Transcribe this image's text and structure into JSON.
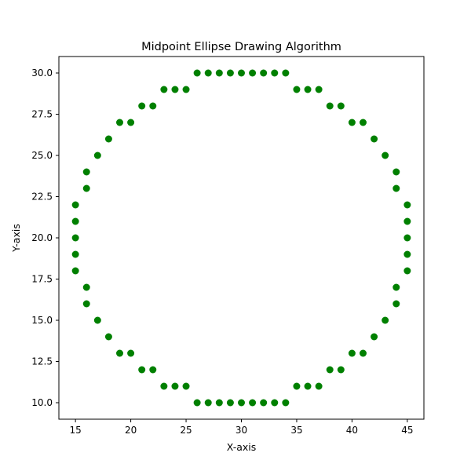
{
  "chart_data": {
    "type": "scatter",
    "title": "Midpoint Ellipse Drawing Algorithm",
    "xlabel": "X-axis",
    "ylabel": "Y-axis",
    "xlim": [
      13.5,
      46.5
    ],
    "ylim": [
      9.0,
      31.0
    ],
    "xticks": [
      15,
      20,
      25,
      30,
      35,
      40,
      45
    ],
    "xtick_labels": [
      "15",
      "20",
      "25",
      "30",
      "35",
      "40",
      "45"
    ],
    "yticks": [
      10.0,
      12.5,
      15.0,
      17.5,
      20.0,
      22.5,
      25.0,
      27.5,
      30.0
    ],
    "ytick_labels": [
      "10.0",
      "12.5",
      "15.0",
      "17.5",
      "20.0",
      "22.5",
      "25.0",
      "27.5",
      "30.0"
    ],
    "grid": false,
    "marker_color": "#008000",
    "points": [
      [
        26,
        30
      ],
      [
        27,
        30
      ],
      [
        28,
        30
      ],
      [
        29,
        30
      ],
      [
        30,
        30
      ],
      [
        31,
        30
      ],
      [
        32,
        30
      ],
      [
        33,
        30
      ],
      [
        34,
        30
      ],
      [
        23,
        29
      ],
      [
        24,
        29
      ],
      [
        25,
        29
      ],
      [
        35,
        29
      ],
      [
        36,
        29
      ],
      [
        37,
        29
      ],
      [
        21,
        28
      ],
      [
        22,
        28
      ],
      [
        38,
        28
      ],
      [
        39,
        28
      ],
      [
        19,
        27
      ],
      [
        20,
        27
      ],
      [
        40,
        27
      ],
      [
        41,
        27
      ],
      [
        18,
        26
      ],
      [
        42,
        26
      ],
      [
        17,
        25
      ],
      [
        43,
        25
      ],
      [
        16,
        24
      ],
      [
        44,
        24
      ],
      [
        16,
        23
      ],
      [
        44,
        23
      ],
      [
        15,
        22
      ],
      [
        45,
        22
      ],
      [
        15,
        21
      ],
      [
        45,
        21
      ],
      [
        15,
        20
      ],
      [
        45,
        20
      ],
      [
        15,
        19
      ],
      [
        45,
        19
      ],
      [
        15,
        18
      ],
      [
        45,
        18
      ],
      [
        16,
        17
      ],
      [
        44,
        17
      ],
      [
        16,
        16
      ],
      [
        44,
        16
      ],
      [
        17,
        15
      ],
      [
        43,
        15
      ],
      [
        18,
        14
      ],
      [
        42,
        14
      ],
      [
        19,
        13
      ],
      [
        20,
        13
      ],
      [
        40,
        13
      ],
      [
        41,
        13
      ],
      [
        21,
        12
      ],
      [
        22,
        12
      ],
      [
        38,
        12
      ],
      [
        39,
        12
      ],
      [
        23,
        11
      ],
      [
        24,
        11
      ],
      [
        25,
        11
      ],
      [
        35,
        11
      ],
      [
        36,
        11
      ],
      [
        37,
        11
      ],
      [
        26,
        10
      ],
      [
        27,
        10
      ],
      [
        28,
        10
      ],
      [
        29,
        10
      ],
      [
        30,
        10
      ],
      [
        31,
        10
      ],
      [
        32,
        10
      ],
      [
        33,
        10
      ],
      [
        34,
        10
      ]
    ]
  }
}
